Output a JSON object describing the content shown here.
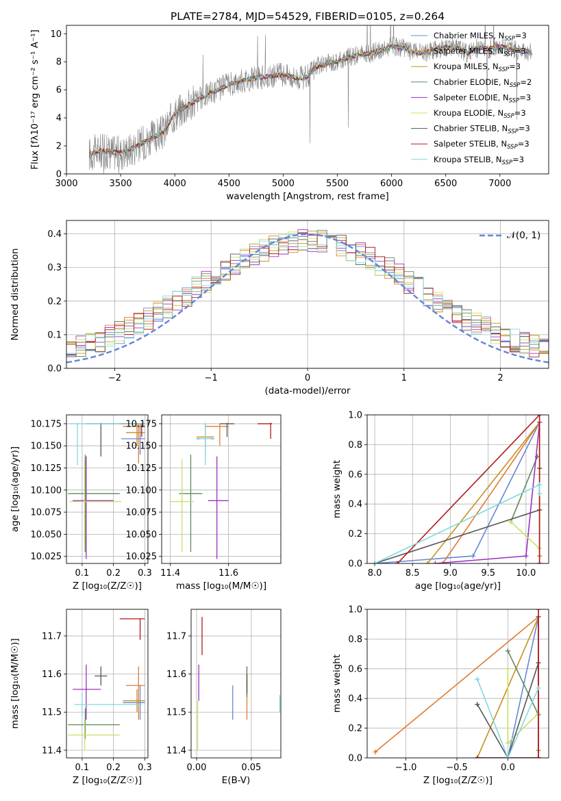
{
  "title": "PLATE=2784, MJD=54529, FIBERID=0105, z=0.264",
  "models": [
    {
      "name": "Chabrier MILES",
      "label": "Chabrier MILES, N",
      "sub": "SSP",
      "eq": "=3",
      "color": "#6487d8"
    },
    {
      "name": "Salpeter MILES",
      "label": "Salpeter MILES, N",
      "sub": "SSP",
      "eq": "=3",
      "color": "#e07b30"
    },
    {
      "name": "Kroupa MILES",
      "label": "Kroupa MILES, N",
      "sub": "SSP",
      "eq": "=3",
      "color": "#c8901a"
    },
    {
      "name": "Chabrier ELODIE",
      "label": "Chabrier ELODIE, N",
      "sub": "SSP",
      "eq": "=2",
      "color": "#5d8a5d"
    },
    {
      "name": "Salpeter ELODIE",
      "label": "Salpeter ELODIE, N",
      "sub": "SSP",
      "eq": "=3",
      "color": "#9b30c0"
    },
    {
      "name": "Kroupa ELODIE",
      "label": "Kroupa ELODIE, N",
      "sub": "SSP",
      "eq": "=3",
      "color": "#c8e060"
    },
    {
      "name": "Chabrier STELIB",
      "label": "Chabrier STELIB, N",
      "sub": "SSP",
      "eq": "=3",
      "color": "#555555"
    },
    {
      "name": "Salpeter STELIB",
      "label": "Salpeter STELIB, N",
      "sub": "SSP",
      "eq": "=3",
      "color": "#b01818"
    },
    {
      "name": "Kroupa STELIB",
      "label": "Kroupa STELIB, N",
      "sub": "SSP",
      "eq": "=3",
      "color": "#80d8e0"
    }
  ],
  "chart_data": [
    {
      "id": "spectrum",
      "type": "line",
      "xlabel": "wavelength [Angstrom, rest frame]",
      "ylabel": "Flux [fλ10⁻¹⁷ erg cm⁻² s⁻¹ A⁻¹]",
      "xlim": [
        3000,
        7450
      ],
      "ylim": [
        0,
        10.6
      ],
      "xticks": [
        3000,
        3500,
        4000,
        4500,
        5000,
        5500,
        6000,
        6500,
        7000
      ],
      "yticks": [
        0,
        2,
        4,
        6,
        8,
        10
      ],
      "data_color": "#808080",
      "continuum": {
        "x": [
          3210,
          3300,
          3400,
          3500,
          3600,
          3700,
          3800,
          3900,
          4000,
          4100,
          4200,
          4300,
          4400,
          4500,
          4600,
          4700,
          4800,
          4900,
          5000,
          5100,
          5200,
          5300,
          5400,
          5500,
          5600,
          5700,
          5800,
          5900,
          6000,
          6100,
          6200,
          6300,
          6400,
          6500,
          6600,
          6700,
          6800,
          6900,
          7000,
          7100,
          7200,
          7300
        ],
        "y": [
          1.4,
          1.65,
          1.6,
          1.5,
          1.8,
          2.2,
          2.6,
          3.0,
          4.3,
          4.8,
          5.2,
          5.7,
          6.0,
          6.4,
          6.6,
          6.8,
          6.9,
          7.0,
          7.1,
          6.9,
          6.8,
          7.6,
          7.9,
          8.0,
          8.3,
          8.5,
          8.6,
          8.8,
          9.1,
          9.0,
          8.7,
          8.6,
          8.9,
          9.0,
          9.1,
          8.6,
          9.0,
          8.9,
          9.1,
          8.9,
          8.8,
          8.7
        ]
      }
    },
    {
      "id": "residuals",
      "type": "histogram",
      "xlabel": "(data-model)/error",
      "ylabel": "Normed distribution",
      "xlim": [
        -2.5,
        2.5
      ],
      "ylim": [
        0,
        0.44
      ],
      "xticks": [
        -2,
        -1,
        0,
        1,
        2
      ],
      "yticks": [
        0.0,
        0.1,
        0.2,
        0.3,
        0.4
      ],
      "bins": 50,
      "reference": {
        "label": "𝒩(0, 1)",
        "mean": 0,
        "sigma": 1,
        "color": "#6487d8"
      }
    },
    {
      "id": "age-vs-Z",
      "type": "errorbar",
      "xlabel": "Z [log₁₀(Z/Z☉)]",
      "ylabel": "age  [log₁₀(age/yr)]",
      "xlim": [
        0.05,
        0.31
      ],
      "ylim": [
        10.017,
        10.185
      ],
      "xticks": [
        0.1,
        0.2,
        0.3
      ],
      "yticks": [
        10.025,
        10.05,
        10.075,
        10.1,
        10.125,
        10.15,
        10.175
      ],
      "points": [
        {
          "model": "Chabrier MILES",
          "x": 0.285,
          "y": 10.158,
          "xerr": [
            0.225,
            0.3
          ],
          "yerr": [
            10.14,
            10.175
          ]
        },
        {
          "model": "Salpeter MILES",
          "x": 0.28,
          "y": 10.172,
          "xerr": [
            0.23,
            0.3
          ],
          "yerr": [
            10.13,
            10.175
          ]
        },
        {
          "model": "Kroupa MILES",
          "x": 0.275,
          "y": 10.165,
          "xerr": [
            0.24,
            0.3
          ],
          "yerr": [
            10.15,
            10.175
          ]
        },
        {
          "model": "Chabrier ELODIE",
          "x": 0.11,
          "y": 10.096,
          "xerr": [
            0.055,
            0.22
          ],
          "yerr": [
            10.03,
            10.14
          ]
        },
        {
          "model": "Salpeter ELODIE",
          "x": 0.113,
          "y": 10.088,
          "xerr": [
            0.07,
            0.2
          ],
          "yerr": [
            10.022,
            10.138
          ]
        },
        {
          "model": "Kroupa ELODIE",
          "x": 0.108,
          "y": 10.087,
          "xerr": [
            0.06,
            0.225
          ],
          "yerr": [
            10.03,
            10.135
          ]
        },
        {
          "model": "Chabrier STELIB",
          "x": 0.16,
          "y": 10.175,
          "xerr": [
            0.11,
            0.3
          ],
          "yerr": [
            10.138,
            10.176
          ]
        },
        {
          "model": "Salpeter STELIB",
          "x": 0.29,
          "y": 10.175,
          "xerr": [
            0.22,
            0.3
          ],
          "yerr": [
            10.16,
            10.176
          ]
        },
        {
          "model": "Kroupa STELIB",
          "x": 0.085,
          "y": 10.175,
          "xerr": [
            0.06,
            0.3
          ],
          "yerr": [
            10.128,
            10.176
          ]
        }
      ]
    },
    {
      "id": "age-vs-mass",
      "type": "errorbar",
      "xlabel": "mass [log₁₀(M/M☉)]",
      "ylabel": "",
      "xlim": [
        11.37,
        11.78
      ],
      "ylim": [
        10.017,
        10.185
      ],
      "xticks": [
        11.4,
        11.6
      ],
      "yticks": [
        10.025,
        10.05,
        10.075,
        10.1,
        10.125,
        10.15,
        10.175
      ],
      "points": [
        {
          "model": "Chabrier MILES",
          "x": 11.52,
          "y": 10.158,
          "xerr": [
            11.49,
            11.55
          ],
          "yerr": [
            10.14,
            10.175
          ]
        },
        {
          "model": "Salpeter MILES",
          "x": 11.57,
          "y": 10.172,
          "xerr": [
            11.52,
            11.6
          ],
          "yerr": [
            10.15,
            10.175
          ]
        },
        {
          "model": "Kroupa MILES",
          "x": 11.52,
          "y": 10.16,
          "xerr": [
            11.49,
            11.55
          ],
          "yerr": [
            10.145,
            10.175
          ]
        },
        {
          "model": "Chabrier ELODIE",
          "x": 11.47,
          "y": 10.096,
          "xerr": [
            11.43,
            11.51
          ],
          "yerr": [
            10.03,
            10.14
          ]
        },
        {
          "model": "Salpeter ELODIE",
          "x": 11.56,
          "y": 10.088,
          "xerr": [
            11.53,
            11.6
          ],
          "yerr": [
            10.022,
            10.138
          ]
        },
        {
          "model": "Kroupa ELODIE",
          "x": 11.44,
          "y": 10.087,
          "xerr": [
            11.4,
            11.48
          ],
          "yerr": [
            10.03,
            10.135
          ]
        },
        {
          "model": "Chabrier STELIB",
          "x": 11.595,
          "y": 10.175,
          "xerr": [
            11.57,
            11.62
          ],
          "yerr": [
            10.16,
            10.176
          ]
        },
        {
          "model": "Salpeter STELIB",
          "x": 11.745,
          "y": 10.175,
          "xerr": [
            11.7,
            11.75
          ],
          "yerr": [
            10.158,
            10.176
          ]
        },
        {
          "model": "Kroupa STELIB",
          "x": 11.52,
          "y": 10.158,
          "xerr": [
            11.5,
            11.54
          ],
          "yerr": [
            10.128,
            10.176
          ]
        }
      ]
    },
    {
      "id": "mass-weight-vs-age",
      "type": "line",
      "xlabel": "age  [log₁₀(age/yr)]",
      "ylabel": "mass weight",
      "xlim": [
        7.9,
        10.3
      ],
      "ylim": [
        0,
        1
      ],
      "xticks": [
        8.0,
        8.5,
        9.0,
        9.5,
        10.0
      ],
      "yticks": [
        0.0,
        0.2,
        0.4,
        0.6,
        0.8,
        1.0
      ],
      "series": [
        {
          "model": "Chabrier MILES",
          "x": [
            8.0,
            9.3,
            10.18
          ],
          "y": [
            0.0,
            0.05,
            0.95
          ]
        },
        {
          "model": "Salpeter MILES",
          "x": [
            8.9,
            10.18,
            10.18
          ],
          "y": [
            0.0,
            0.95,
            0.05
          ]
        },
        {
          "model": "Kroupa MILES",
          "x": [
            8.7,
            10.18,
            10.18
          ],
          "y": [
            0.0,
            0.95,
            0.05
          ]
        },
        {
          "model": "Chabrier ELODIE",
          "x": [
            9.8,
            10.15
          ],
          "y": [
            0.28,
            0.72
          ]
        },
        {
          "model": "Salpeter ELODIE",
          "x": [
            8.8,
            10.0,
            10.18
          ],
          "y": [
            0.0,
            0.05,
            0.95
          ]
        },
        {
          "model": "Kroupa ELODIE",
          "x": [
            9.8,
            10.18,
            10.18
          ],
          "y": [
            0.28,
            0.1,
            0.6
          ]
        },
        {
          "model": "Chabrier STELIB",
          "x": [
            8.0,
            10.18,
            10.18,
            10.18
          ],
          "y": [
            0.0,
            0.36,
            0.64,
            0.0
          ]
        },
        {
          "model": "Salpeter STELIB",
          "x": [
            8.3,
            10.18,
            10.18
          ],
          "y": [
            0.0,
            1.0,
            0.0
          ]
        },
        {
          "model": "Kroupa STELIB",
          "x": [
            8.0,
            10.18,
            10.18
          ],
          "y": [
            0.0,
            0.53,
            0.47
          ]
        }
      ]
    },
    {
      "id": "mass-vs-Z",
      "type": "errorbar",
      "xlabel": "Z [log₁₀(Z/Z☉)]",
      "ylabel": "mass [log₁₀(M/M☉)]",
      "xlim": [
        0.05,
        0.31
      ],
      "ylim": [
        11.38,
        11.77
      ],
      "xticks": [
        0.1,
        0.2,
        0.3
      ],
      "yticks": [
        11.4,
        11.5,
        11.6,
        11.7
      ],
      "points": [
        {
          "model": "Chabrier MILES",
          "x": 0.285,
          "y": 11.525,
          "xerr": [
            0.23,
            0.3
          ],
          "yerr": [
            11.48,
            11.57
          ]
        },
        {
          "model": "Salpeter MILES",
          "x": 0.28,
          "y": 11.57,
          "xerr": [
            0.24,
            0.3
          ],
          "yerr": [
            11.48,
            11.62
          ]
        },
        {
          "model": "Kroupa MILES",
          "x": 0.275,
          "y": 11.53,
          "xerr": [
            0.23,
            0.3
          ],
          "yerr": [
            11.5,
            11.56
          ]
        },
        {
          "model": "Chabrier ELODIE",
          "x": 0.11,
          "y": 11.467,
          "xerr": [
            0.055,
            0.22
          ],
          "yerr": [
            11.43,
            11.51
          ]
        },
        {
          "model": "Salpeter ELODIE",
          "x": 0.113,
          "y": 11.56,
          "xerr": [
            0.07,
            0.16
          ],
          "yerr": [
            11.48,
            11.625
          ]
        },
        {
          "model": "Kroupa ELODIE",
          "x": 0.108,
          "y": 11.44,
          "xerr": [
            0.055,
            0.22
          ],
          "yerr": [
            11.4,
            11.48
          ]
        },
        {
          "model": "Chabrier STELIB",
          "x": 0.16,
          "y": 11.595,
          "xerr": [
            0.14,
            0.18
          ],
          "yerr": [
            11.57,
            11.62
          ]
        },
        {
          "model": "Salpeter STELIB",
          "x": 0.285,
          "y": 11.745,
          "xerr": [
            0.22,
            0.3
          ],
          "yerr": [
            11.69,
            11.745
          ]
        },
        {
          "model": "Kroupa STELIB",
          "x": 0.1,
          "y": 11.52,
          "xerr": [
            0.075,
            0.29
          ],
          "yerr": [
            11.49,
            11.55
          ]
        }
      ]
    },
    {
      "id": "mass-vs-EBV",
      "type": "errorbar",
      "xlabel": "E(B-V)",
      "ylabel": "",
      "xlim": [
        -0.005,
        0.077
      ],
      "ylim": [
        11.38,
        11.77
      ],
      "xticks": [
        0.0,
        0.05
      ],
      "yticks": [
        11.4,
        11.5,
        11.6,
        11.7
      ],
      "points": [
        {
          "model": "Chabrier MILES",
          "x": 0.033,
          "y": 11.525,
          "yerr": [
            11.48,
            11.57
          ]
        },
        {
          "model": "Salpeter MILES",
          "x": 0.046,
          "y": 11.53,
          "yerr": [
            11.48,
            11.58
          ]
        },
        {
          "model": "Kroupa MILES",
          "x": 0.046,
          "y": 11.58,
          "yerr": [
            11.54,
            11.62
          ]
        },
        {
          "model": "Chabrier ELODIE",
          "x": 0.046,
          "y": 11.58,
          "yerr": [
            11.54,
            11.62
          ]
        },
        {
          "model": "Salpeter ELODIE",
          "x": 0.002,
          "y": 11.58,
          "yerr": [
            11.53,
            11.625
          ]
        },
        {
          "model": "Kroupa ELODIE",
          "x": 0.001,
          "y": 11.46,
          "yerr": [
            11.4,
            11.53
          ]
        },
        {
          "model": "Chabrier STELIB",
          "x": 0.046,
          "y": 11.59,
          "yerr": [
            11.55,
            11.6
          ]
        },
        {
          "model": "Salpeter STELIB",
          "x": 0.005,
          "y": 11.7,
          "yerr": [
            11.65,
            11.75
          ]
        },
        {
          "model": "Kroupa STELIB",
          "x": 0.076,
          "y": 11.52,
          "yerr": [
            11.5,
            11.545
          ]
        }
      ]
    },
    {
      "id": "mass-weight-vs-Z",
      "type": "line",
      "xlabel": "Z [log₁₀(Z/Z☉)]",
      "ylabel": "mass weight",
      "xlim": [
        -1.38,
        0.4
      ],
      "ylim": [
        0,
        1
      ],
      "xticks": [
        -1.0,
        -0.5,
        0.0
      ],
      "yticks": [
        0.0,
        0.2,
        0.4,
        0.6,
        0.8,
        1.0
      ],
      "series": [
        {
          "model": "Chabrier MILES",
          "x": [
            0.0,
            0.3,
            0.3
          ],
          "y": [
            0.0,
            0.95,
            0.05
          ]
        },
        {
          "model": "Salpeter MILES",
          "x": [
            -1.3,
            0.3,
            0.3
          ],
          "y": [
            0.04,
            0.95,
            0.0
          ]
        },
        {
          "model": "Kroupa MILES",
          "x": [
            -0.3,
            0.3,
            0.3
          ],
          "y": [
            0.0,
            0.95,
            0.05
          ]
        },
        {
          "model": "Chabrier ELODIE",
          "x": [
            0.0,
            0.3
          ],
          "y": [
            0.72,
            0.29
          ]
        },
        {
          "model": "Salpeter ELODIE",
          "x": [
            -0.3,
            0.3,
            0.3
          ],
          "y": [
            0.0,
            0.0,
            0.95
          ]
        },
        {
          "model": "Kroupa ELODIE",
          "x": [
            0.0,
            0.0,
            0.3
          ],
          "y": [
            0.6,
            0.1,
            0.3
          ]
        },
        {
          "model": "Chabrier STELIB",
          "x": [
            -0.3,
            0.0,
            0.3
          ],
          "y": [
            0.36,
            0.0,
            0.64
          ]
        },
        {
          "model": "Salpeter STELIB",
          "x": [
            -0.3,
            0.3,
            0.3
          ],
          "y": [
            0.0,
            0.0,
            1.0
          ]
        },
        {
          "model": "Kroupa STELIB",
          "x": [
            -0.3,
            0.0,
            0.3
          ],
          "y": [
            0.53,
            0.0,
            0.47
          ]
        }
      ]
    }
  ]
}
